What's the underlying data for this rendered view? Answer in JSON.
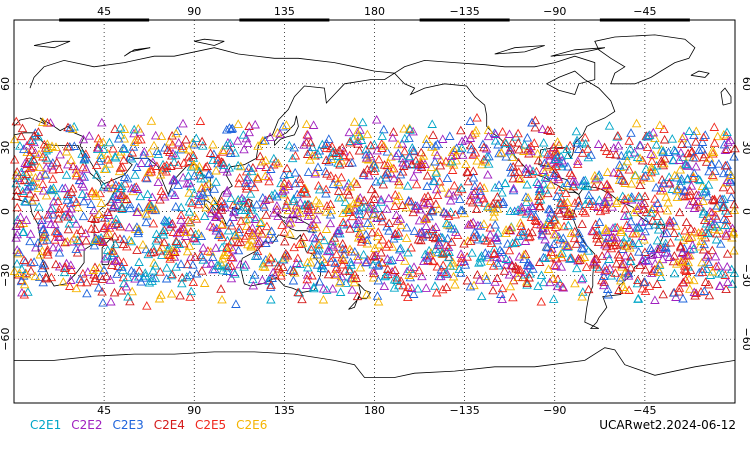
{
  "map": {
    "top_lon_labels": [
      "45",
      "90",
      "135",
      "180",
      "−135",
      "−90",
      "−45"
    ],
    "bottom_lon_labels": [
      "45",
      "90",
      "135",
      "180",
      "−135",
      "−90",
      "−45"
    ],
    "lat_labels": [
      "60",
      "30",
      "0",
      "−30",
      "−60"
    ],
    "lon_values": [
      45,
      90,
      135,
      180,
      -135,
      -90,
      -45
    ],
    "lat_values": [
      60,
      30,
      0,
      -30,
      -60
    ],
    "lon_range": [
      0,
      360
    ],
    "lat_range": [
      -90,
      90
    ],
    "observation_lat_band": [
      -45,
      45
    ],
    "marker": "triangle-outline",
    "grid": "dotted"
  },
  "legend": {
    "items": [
      {
        "label": "C2E1",
        "color": "#00a6c8"
      },
      {
        "label": "C2E2",
        "color": "#a020c0"
      },
      {
        "label": "C2E3",
        "color": "#1e64dc"
      },
      {
        "label": "C2E4",
        "color": "#d41a1a"
      },
      {
        "label": "C2E5",
        "color": "#f0281e"
      },
      {
        "label": "C2E6",
        "color": "#f5b400"
      }
    ]
  },
  "product_label": "UCARwet2.2024-06-12"
}
